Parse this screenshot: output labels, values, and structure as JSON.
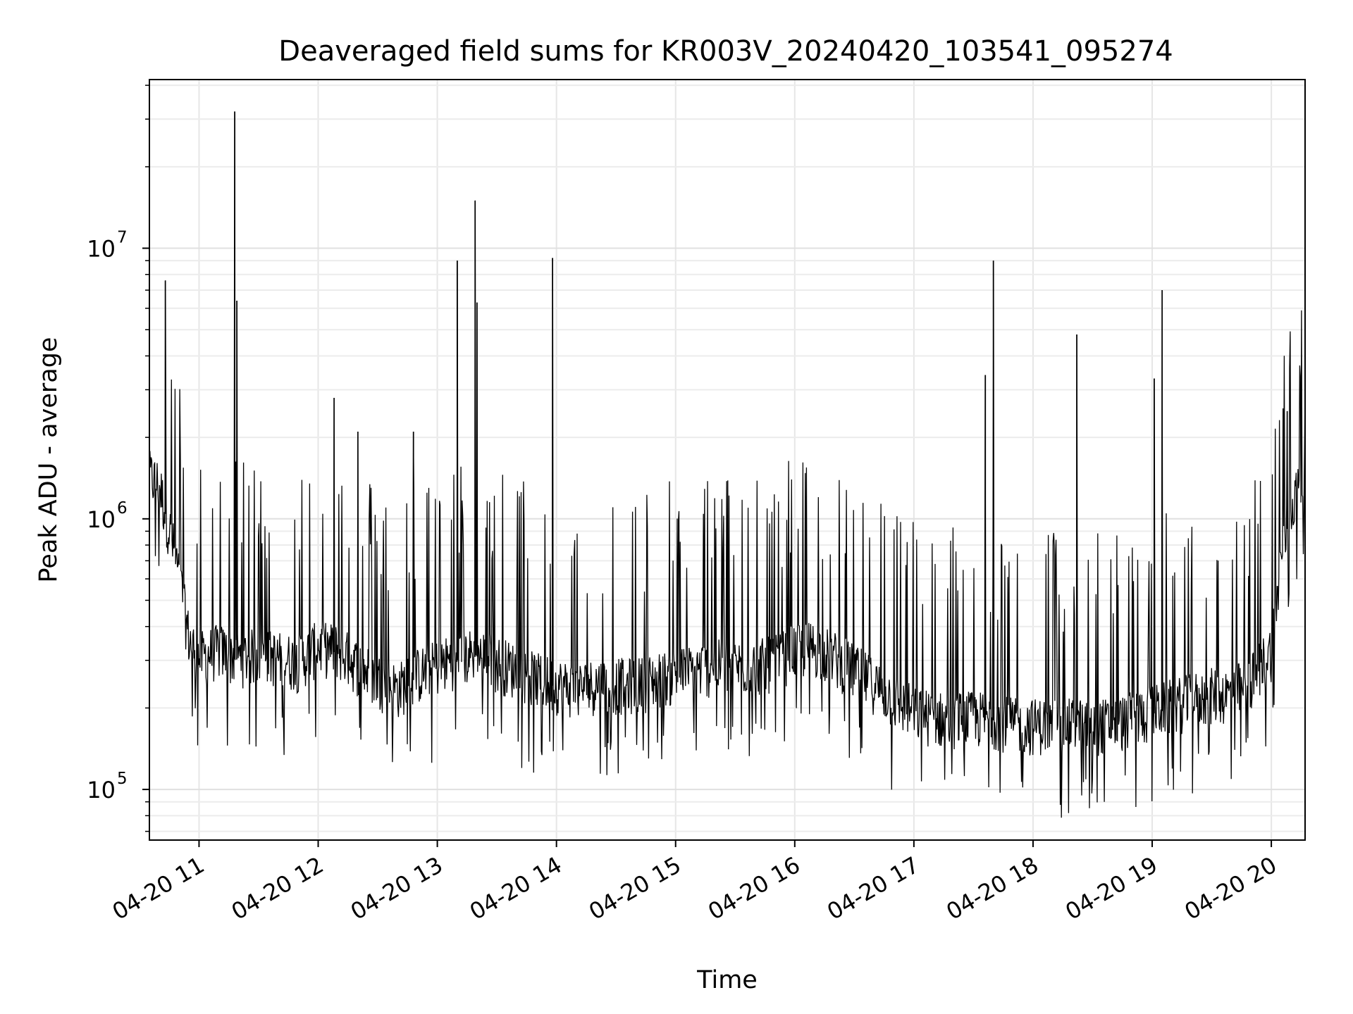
{
  "chart_data": {
    "type": "line",
    "title": "Deaveraged field sums for KR003V_20240420_103541_095274",
    "xlabel": "Time",
    "ylabel": "Peak ADU - average",
    "yscale": "log",
    "ylim": [
      65000,
      42000000
    ],
    "xlim": [
      "2024-04-20 10:35",
      "2024-04-20 20:17"
    ],
    "x_ticks": [
      {
        "value": "2024-04-20 11:00",
        "label": "04-20 11"
      },
      {
        "value": "2024-04-20 12:00",
        "label": "04-20 12"
      },
      {
        "value": "2024-04-20 13:00",
        "label": "04-20 13"
      },
      {
        "value": "2024-04-20 14:00",
        "label": "04-20 14"
      },
      {
        "value": "2024-04-20 15:00",
        "label": "04-20 15"
      },
      {
        "value": "2024-04-20 16:00",
        "label": "04-20 16"
      },
      {
        "value": "2024-04-20 17:00",
        "label": "04-20 17"
      },
      {
        "value": "2024-04-20 18:00",
        "label": "04-20 18"
      },
      {
        "value": "2024-04-20 19:00",
        "label": "04-20 19"
      },
      {
        "value": "2024-04-20 20:00",
        "label": "04-20 20"
      }
    ],
    "y_ticks": [
      {
        "value": 100000,
        "base": "10",
        "exponent": "5"
      },
      {
        "value": 1000000,
        "base": "10",
        "exponent": "6"
      },
      {
        "value": 10000000,
        "base": "10",
        "exponent": "7"
      }
    ],
    "grid": true,
    "line_color": "#000000",
    "series": [
      {
        "x": [
          "2024-04-20 10:35",
          "2024-04-20 10:40",
          "2024-04-20 10:45",
          "2024-04-20 10:50",
          "2024-04-20 10:55",
          "2024-04-20 11:00",
          "2024-04-20 11:10",
          "2024-04-20 11:20",
          "2024-04-20 11:30",
          "2024-04-20 11:40",
          "2024-04-20 11:50",
          "2024-04-20 12:00",
          "2024-04-20 12:10",
          "2024-04-20 12:20",
          "2024-04-20 12:30",
          "2024-04-20 12:40",
          "2024-04-20 12:50",
          "2024-04-20 13:00",
          "2024-04-20 13:10",
          "2024-04-20 13:20",
          "2024-04-20 13:30",
          "2024-04-20 13:40",
          "2024-04-20 13:50",
          "2024-04-20 14:00",
          "2024-04-20 14:10",
          "2024-04-20 14:20",
          "2024-04-20 14:30",
          "2024-04-20 14:40",
          "2024-04-20 14:50",
          "2024-04-20 15:00",
          "2024-04-20 15:10",
          "2024-04-20 15:20",
          "2024-04-20 15:30",
          "2024-04-20 15:40",
          "2024-04-20 15:50",
          "2024-04-20 16:00",
          "2024-04-20 16:10",
          "2024-04-20 16:20",
          "2024-04-20 16:30",
          "2024-04-20 16:40",
          "2024-04-20 16:50",
          "2024-04-20 17:00",
          "2024-04-20 17:10",
          "2024-04-20 17:20",
          "2024-04-20 17:30",
          "2024-04-20 17:40",
          "2024-04-20 17:50",
          "2024-04-20 18:00",
          "2024-04-20 18:10",
          "2024-04-20 18:20",
          "2024-04-20 18:30",
          "2024-04-20 18:40",
          "2024-04-20 18:50",
          "2024-04-20 19:00",
          "2024-04-20 19:10",
          "2024-04-20 19:20",
          "2024-04-20 19:30",
          "2024-04-20 19:40",
          "2024-04-20 19:50",
          "2024-04-20 20:00",
          "2024-04-20 20:05",
          "2024-04-20 20:10",
          "2024-04-20 20:17"
        ],
        "y": [
          1400000,
          1300000,
          900000,
          600000,
          350000,
          300000,
          320000,
          300000,
          310000,
          300000,
          290000,
          330000,
          320000,
          280000,
          250000,
          230000,
          260000,
          280000,
          300000,
          310000,
          290000,
          270000,
          250000,
          240000,
          230000,
          240000,
          240000,
          240000,
          250000,
          260000,
          270000,
          280000,
          280000,
          280000,
          290000,
          320000,
          330000,
          300000,
          270000,
          240000,
          210000,
          190000,
          180000,
          180000,
          180000,
          180000,
          170000,
          170000,
          170000,
          170000,
          170000,
          170000,
          180000,
          190000,
          200000,
          210000,
          220000,
          220000,
          250000,
          320000,
          700000,
          1100000,
          1400000
        ]
      }
    ],
    "spikes": [
      {
        "x": "2024-04-20 10:43",
        "y": 7600000
      },
      {
        "x": "2024-04-20 11:18",
        "y": 32000000
      },
      {
        "x": "2024-04-20 11:19",
        "y": 6400000
      },
      {
        "x": "2024-04-20 12:08",
        "y": 2800000
      },
      {
        "x": "2024-04-20 12:20",
        "y": 2100000
      },
      {
        "x": "2024-04-20 12:48",
        "y": 2100000
      },
      {
        "x": "2024-04-20 13:10",
        "y": 9000000
      },
      {
        "x": "2024-04-20 13:19",
        "y": 15000000
      },
      {
        "x": "2024-04-20 13:20",
        "y": 6300000
      },
      {
        "x": "2024-04-20 13:58",
        "y": 9200000
      },
      {
        "x": "2024-04-20 17:40",
        "y": 9000000
      },
      {
        "x": "2024-04-20 17:36",
        "y": 3400000
      },
      {
        "x": "2024-04-20 18:22",
        "y": 4800000
      },
      {
        "x": "2024-04-20 19:01",
        "y": 3300000
      },
      {
        "x": "2024-04-20 19:05",
        "y": 7000000
      },
      {
        "x": "2024-04-20 20:08",
        "y": 2500000
      }
    ]
  }
}
